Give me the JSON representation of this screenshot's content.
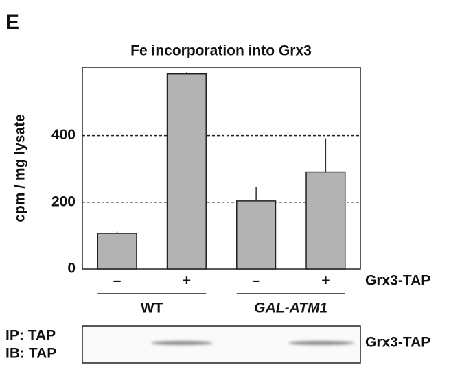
{
  "panel_label": "E",
  "chart_data": {
    "type": "bar",
    "title": "Fe incorporation into Grx3",
    "ylabel": "cpm / mg lysate",
    "categories": [
      "–",
      "+",
      "–",
      "+"
    ],
    "category_axis_label": "Grx3-TAP",
    "values": [
      107,
      585,
      204,
      291
    ],
    "errors": [
      5,
      5,
      43,
      101
    ],
    "color": "#b3b3b3",
    "groups": [
      "WT",
      "GAL-ATM1"
    ],
    "ylim": [
      0,
      605
    ],
    "yticks": [
      0,
      200,
      400
    ],
    "grid": true
  },
  "blot": {
    "labels": [
      "IP: TAP",
      "IB: TAP"
    ],
    "band_label": "Grx3-TAP"
  }
}
